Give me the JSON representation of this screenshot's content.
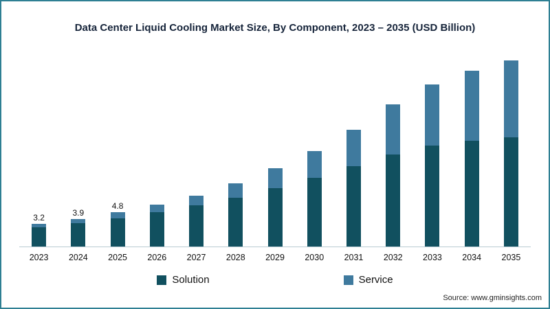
{
  "title": "Data Center Liquid Cooling Market Size, By Component, 2023 – 2035 (USD Billion)",
  "source": "Source: www.gminsights.com",
  "legend": {
    "items": [
      {
        "label": "Solution",
        "color": "#11505f"
      },
      {
        "label": "Service",
        "color": "#3f7a9e"
      }
    ]
  },
  "chart_data": {
    "type": "bar",
    "stacked": true,
    "title": "Data Center Liquid Cooling Market Size, By Component, 2023 – 2035 (USD Billion)",
    "categories": [
      "2023",
      "2024",
      "2025",
      "2026",
      "2027",
      "2028",
      "2029",
      "2030",
      "2031",
      "2032",
      "2033",
      "2034",
      "2035"
    ],
    "series": [
      {
        "name": "Solution",
        "color": "#11505f",
        "values": [
          2.7,
          3.3,
          4.0,
          4.8,
          5.8,
          6.9,
          8.2,
          9.7,
          11.3,
          13.0,
          14.2,
          14.9,
          15.4
        ]
      },
      {
        "name": "Service",
        "color": "#3f7a9e",
        "values": [
          0.5,
          0.6,
          0.8,
          1.1,
          1.4,
          2.0,
          2.8,
          3.8,
          5.2,
          7.0,
          8.6,
          9.9,
          10.8
        ]
      }
    ],
    "totals": [
      3.2,
      3.9,
      4.8,
      5.9,
      7.2,
      8.9,
      11.0,
      13.5,
      16.5,
      20.0,
      22.8,
      24.8,
      26.2
    ],
    "bar_labels": [
      "3.2",
      "3.9",
      "4.8",
      "",
      "",
      "",
      "",
      "",
      "",
      "",
      "",
      "",
      ""
    ],
    "ylim": [
      0,
      27
    ],
    "xlabel": "",
    "ylabel": "",
    "grid": false,
    "legend_position": "bottom"
  }
}
